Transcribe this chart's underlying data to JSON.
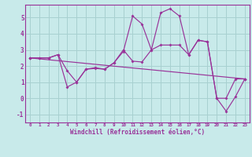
{
  "background_color": "#c8eaea",
  "grid_color": "#a8d0d0",
  "line_color": "#993399",
  "xlabel": "Windchill (Refroidissement éolien,°C)",
  "ylim": [
    -1.5,
    5.8
  ],
  "xlim": [
    -0.5,
    23.5
  ],
  "yticks": [
    -1,
    0,
    1,
    2,
    3,
    4,
    5
  ],
  "xticks": [
    0,
    1,
    2,
    3,
    4,
    5,
    6,
    7,
    8,
    9,
    10,
    11,
    12,
    13,
    14,
    15,
    16,
    17,
    18,
    19,
    20,
    21,
    22,
    23
  ],
  "line1_x": [
    0,
    1,
    2,
    3,
    4,
    5,
    6,
    7,
    8,
    9,
    10,
    11,
    12,
    13,
    14,
    15,
    16,
    17,
    18,
    19,
    20,
    21,
    22,
    23
  ],
  "line1_y": [
    2.5,
    2.5,
    2.5,
    2.7,
    1.7,
    1.0,
    1.8,
    1.85,
    1.8,
    2.2,
    3.0,
    2.3,
    2.25,
    3.0,
    3.3,
    3.3,
    3.3,
    2.7,
    3.6,
    3.5,
    0.0,
    0.0,
    1.2,
    1.2
  ],
  "line2_x": [
    0,
    1,
    2,
    3,
    4,
    5,
    6,
    7,
    8,
    9,
    10,
    11,
    12,
    13,
    14,
    15,
    16,
    17,
    18,
    19,
    20,
    21,
    22,
    23
  ],
  "line2_y": [
    2.5,
    2.5,
    2.5,
    2.7,
    0.7,
    1.0,
    1.8,
    1.9,
    1.8,
    2.2,
    2.9,
    5.1,
    4.6,
    3.0,
    5.3,
    5.55,
    5.1,
    2.7,
    3.6,
    3.5,
    0.0,
    -0.8,
    0.1,
    1.2
  ],
  "line3_x": [
    0,
    23
  ],
  "line3_y": [
    2.5,
    1.2
  ]
}
